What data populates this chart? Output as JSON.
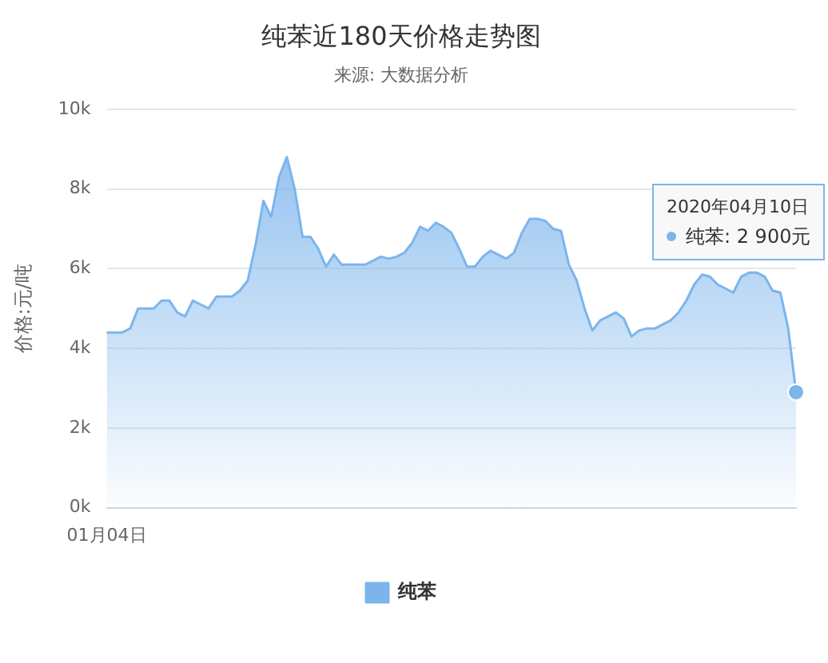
{
  "chart_data": {
    "type": "area",
    "title": "纯苯近180天价格走势图",
    "subtitle": "来源: 大数据分析",
    "ylabel": "价格:元/吨",
    "categories": [
      "01月04日",
      null,
      null,
      null,
      null,
      null,
      null,
      null,
      null,
      null,
      null,
      null,
      null,
      null,
      null,
      null,
      null,
      null,
      null,
      null,
      null,
      null,
      null,
      null,
      null,
      null,
      null,
      null,
      null,
      null,
      null,
      null,
      null,
      null,
      null,
      null,
      null,
      null,
      null,
      null,
      null,
      null,
      null,
      null,
      null,
      null,
      null,
      null,
      null,
      null,
      null,
      null,
      null,
      null,
      null,
      null,
      null,
      null,
      null,
      null,
      null,
      null,
      null,
      null,
      null,
      null,
      null,
      null,
      null,
      null,
      null,
      null,
      null,
      null,
      null,
      null,
      null,
      null,
      null,
      null,
      null,
      null,
      null,
      null,
      null,
      null,
      null,
      null,
      null
    ],
    "series": [
      {
        "name": "纯苯",
        "color": "#7cb5ec",
        "values": [
          4400,
          4400,
          4400,
          4500,
          5000,
          5000,
          5000,
          5200,
          5200,
          4900,
          4800,
          5200,
          5100,
          5000,
          5300,
          5300,
          5300,
          5450,
          5700,
          6600,
          7700,
          7300,
          8300,
          8800,
          8000,
          6800,
          6800,
          6500,
          6050,
          6350,
          6100,
          6100,
          6100,
          6100,
          6200,
          6300,
          6250,
          6300,
          6400,
          6650,
          7050,
          6950,
          7150,
          7050,
          6900,
          6500,
          6050,
          6050,
          6300,
          6450,
          6350,
          6250,
          6400,
          6900,
          7250,
          7250,
          7200,
          7000,
          6950,
          6100,
          5700,
          5000,
          4450,
          4700,
          4800,
          4900,
          4750,
          4300,
          4450,
          4500,
          4500,
          4600,
          4700,
          4900,
          5200,
          5600,
          5850,
          5800,
          5600,
          5500,
          5400,
          5800,
          5900,
          5900,
          5800,
          5450,
          5400,
          4500,
          2900
        ]
      }
    ],
    "ylim": [
      0,
      10000
    ],
    "yticks": [
      {
        "value": 0,
        "label": "0k"
      },
      {
        "value": 2000,
        "label": "2k"
      },
      {
        "value": 4000,
        "label": "4k"
      },
      {
        "value": 6000,
        "label": "6k"
      },
      {
        "value": 8000,
        "label": "8k"
      },
      {
        "value": 10000,
        "label": "10k"
      }
    ],
    "grid": "y",
    "legend": "bottom",
    "marker": "none",
    "line_style": "solid",
    "annotations": [
      "2020年04月10日",
      "纯苯: 2 900元"
    ]
  }
}
